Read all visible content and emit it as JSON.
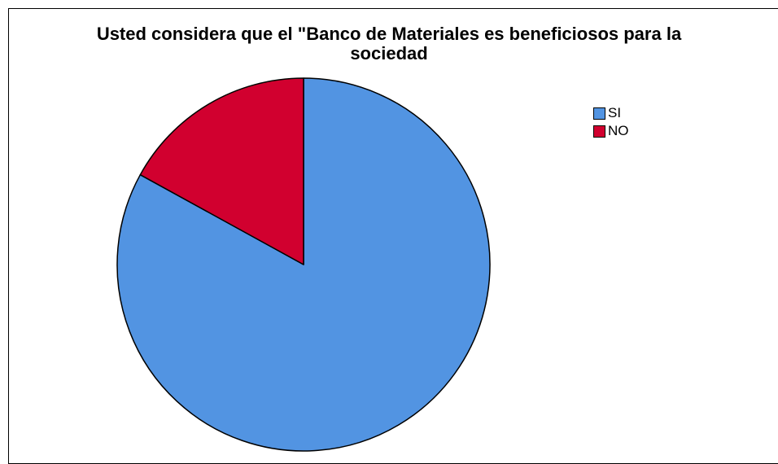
{
  "chart_data": {
    "type": "pie",
    "title_line1": "Usted considera que el \"Banco de Materiales es beneficiosos para la",
    "title_line2": "sociedad",
    "categories": [
      "SI",
      "NO"
    ],
    "values": [
      83,
      17
    ],
    "colors": [
      "#5294e2",
      "#d1002f"
    ],
    "legend": {
      "placement": "top-right",
      "items": [
        {
          "label": "SI",
          "color": "#5294e2"
        },
        {
          "label": "NO",
          "color": "#d1002f"
        }
      ]
    }
  }
}
